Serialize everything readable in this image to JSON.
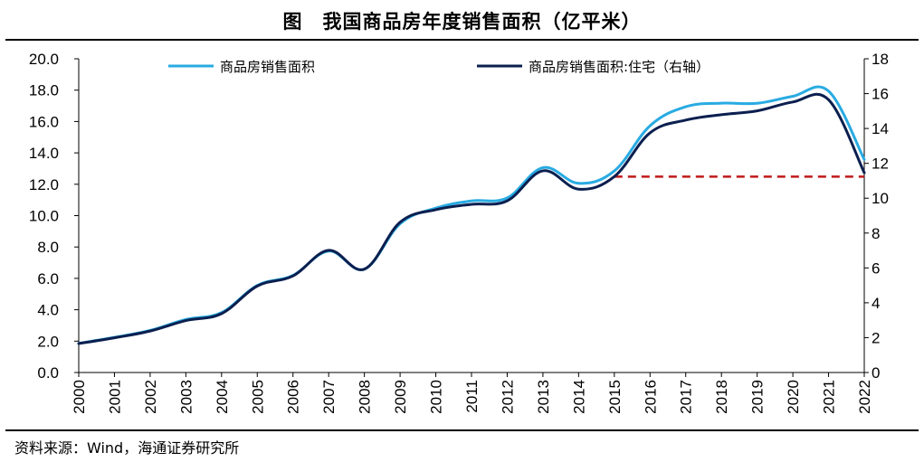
{
  "header": {
    "title": "图　我国商品房年度销售面积（亿平米）"
  },
  "footer": {
    "source": "资料来源：Wind，海通证券研究所"
  },
  "chart_data": {
    "type": "line",
    "title": "图　我国商品房年度销售面积（亿平米）",
    "x": [
      "2000",
      "2001",
      "2002",
      "2003",
      "2004",
      "2005",
      "2006",
      "2007",
      "2008",
      "2009",
      "2010",
      "2011",
      "2012",
      "2013",
      "2014",
      "2015",
      "2016",
      "2017",
      "2018",
      "2019",
      "2020",
      "2021",
      "2022"
    ],
    "series": [
      {
        "name": "商品房销售面积",
        "axis": "left",
        "color": "#29ABE2",
        "values": [
          1.86,
          2.24,
          2.68,
          3.38,
          3.82,
          5.55,
          6.19,
          7.74,
          6.59,
          9.48,
          10.48,
          10.94,
          11.13,
          13.06,
          12.06,
          12.85,
          15.73,
          16.94,
          17.17,
          17.16,
          17.61,
          17.94,
          13.58
        ]
      },
      {
        "name": "商品房销售面积:住宅（右轴）",
        "axis": "right",
        "color": "#0B1F4F",
        "values": [
          1.66,
          1.99,
          2.38,
          2.98,
          3.38,
          4.96,
          5.54,
          7.01,
          5.93,
          8.62,
          9.34,
          9.65,
          9.85,
          11.57,
          10.52,
          11.24,
          13.75,
          14.48,
          14.79,
          15.01,
          15.52,
          15.65,
          11.46
        ]
      }
    ],
    "reference_line": {
      "axis": "right",
      "value": 11.24,
      "from": "2015",
      "to": "2022",
      "color": "#C0191A",
      "style": "dashed"
    },
    "ylim_left": [
      0,
      20
    ],
    "ylim_right": [
      0,
      18
    ],
    "yticks_left": [
      "0.0",
      "2.0",
      "4.0",
      "6.0",
      "8.0",
      "10.0",
      "12.0",
      "14.0",
      "16.0",
      "18.0",
      "20.0"
    ],
    "yticks_right": [
      "0",
      "2",
      "4",
      "6",
      "8",
      "10",
      "12",
      "14",
      "16",
      "18"
    ],
    "legend": "top",
    "grid": false
  }
}
